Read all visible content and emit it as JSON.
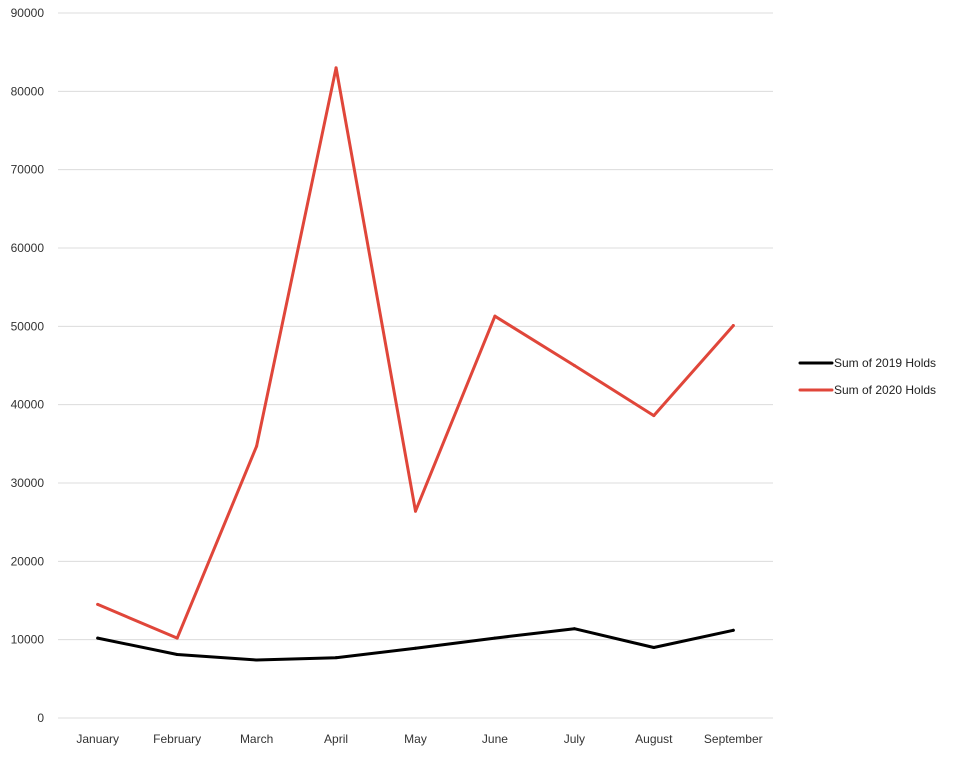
{
  "chart_data": {
    "type": "line",
    "categories": [
      "January",
      "February",
      "March",
      "April",
      "May",
      "June",
      "July",
      "August",
      "September"
    ],
    "series": [
      {
        "name": "Sum of 2019 Holds",
        "color": "#000000",
        "values": [
          10200,
          8100,
          7400,
          7700,
          8900,
          10200,
          11400,
          9000,
          11200
        ]
      },
      {
        "name": "Sum of 2020 Holds",
        "color": "#e0463a",
        "values": [
          14500,
          10200,
          34700,
          83000,
          26400,
          51300,
          45000,
          38600,
          50100
        ]
      }
    ],
    "ylim": [
      0,
      90000
    ],
    "yticks": [
      0,
      10000,
      20000,
      30000,
      40000,
      50000,
      60000,
      70000,
      80000,
      90000
    ],
    "grid": true,
    "legend_position": "right"
  }
}
